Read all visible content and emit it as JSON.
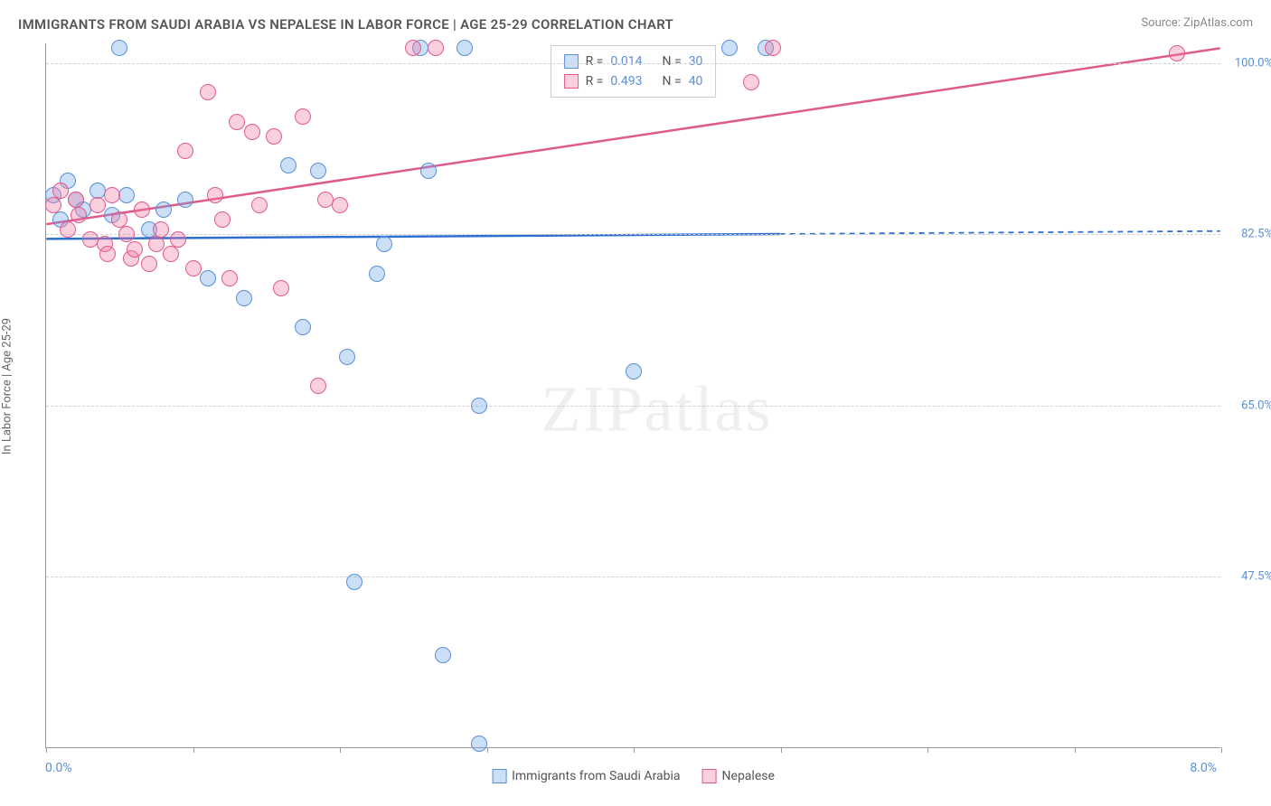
{
  "title": "IMMIGRANTS FROM SAUDI ARABIA VS NEPALESE IN LABOR FORCE | AGE 25-29 CORRELATION CHART",
  "source_label": "Source:",
  "source_value": "ZipAtlas.com",
  "y_axis_title": "In Labor Force | Age 25-29",
  "watermark": "ZIPatlas",
  "chart": {
    "type": "scatter",
    "background_color": "#ffffff",
    "grid_color": "#d0d0d0",
    "axis_color": "#999999",
    "tick_label_color": "#5b8fd6",
    "xlim": [
      0.0,
      8.0
    ],
    "ylim": [
      30.0,
      102.0
    ],
    "y_ticks": [
      100.0,
      82.5,
      65.0,
      47.5
    ],
    "y_tick_labels": [
      "100.0%",
      "82.5%",
      "65.0%",
      "47.5%"
    ],
    "x_ticks": [
      0.0,
      1.0,
      2.0,
      3.0,
      4.0,
      5.0,
      6.0,
      7.0,
      8.0
    ],
    "x_label_min": "0.0%",
    "x_label_max": "8.0%",
    "marker_radius": 9,
    "series": [
      {
        "key": "saudi",
        "label": "Immigrants from Saudi Arabia",
        "fill": "rgba(107,163,232,0.35)",
        "stroke": "#5b8fd6",
        "line_color": "#2f6fd0",
        "line_width": 2.5,
        "r": "0.014",
        "n": "30",
        "trend": {
          "x1": 0.0,
          "y1": 82.0,
          "x2": 5.0,
          "y2": 82.5,
          "extrap_x2": 8.0,
          "extrap_y2": 82.8
        },
        "points": [
          [
            0.05,
            86.5
          ],
          [
            0.1,
            84.0
          ],
          [
            0.15,
            88.0
          ],
          [
            0.2,
            86.0
          ],
          [
            0.25,
            85.0
          ],
          [
            0.35,
            87.0
          ],
          [
            0.45,
            84.5
          ],
          [
            0.5,
            101.5
          ],
          [
            0.55,
            86.5
          ],
          [
            0.7,
            83.0
          ],
          [
            0.8,
            85.0
          ],
          [
            0.95,
            86.0
          ],
          [
            1.1,
            78.0
          ],
          [
            1.35,
            76.0
          ],
          [
            1.65,
            89.5
          ],
          [
            1.75,
            73.0
          ],
          [
            1.85,
            89.0
          ],
          [
            2.05,
            70.0
          ],
          [
            2.1,
            47.0
          ],
          [
            2.25,
            78.5
          ],
          [
            2.3,
            81.5
          ],
          [
            2.55,
            101.5
          ],
          [
            2.6,
            89.0
          ],
          [
            2.7,
            39.5
          ],
          [
            2.85,
            101.5
          ],
          [
            2.95,
            65.0
          ],
          [
            2.95,
            30.5
          ],
          [
            4.0,
            68.5
          ],
          [
            4.65,
            101.5
          ],
          [
            4.9,
            101.5
          ]
        ]
      },
      {
        "key": "nepalese",
        "label": "Nepalese",
        "fill": "rgba(242,120,160,0.35)",
        "stroke": "#e05a8c",
        "line_color": "#e05a8c",
        "line_width": 2.5,
        "r": "0.493",
        "n": "40",
        "trend": {
          "x1": 0.0,
          "y1": 83.5,
          "x2": 8.0,
          "y2": 101.5
        },
        "points": [
          [
            0.05,
            85.5
          ],
          [
            0.1,
            87.0
          ],
          [
            0.15,
            83.0
          ],
          [
            0.2,
            86.0
          ],
          [
            0.22,
            84.5
          ],
          [
            0.3,
            82.0
          ],
          [
            0.35,
            85.5
          ],
          [
            0.4,
            81.5
          ],
          [
            0.42,
            80.5
          ],
          [
            0.45,
            86.5
          ],
          [
            0.5,
            84.0
          ],
          [
            0.55,
            82.5
          ],
          [
            0.58,
            80.0
          ],
          [
            0.6,
            81.0
          ],
          [
            0.65,
            85.0
          ],
          [
            0.7,
            79.5
          ],
          [
            0.75,
            81.5
          ],
          [
            0.78,
            83.0
          ],
          [
            0.85,
            80.5
          ],
          [
            0.9,
            82.0
          ],
          [
            0.95,
            91.0
          ],
          [
            1.0,
            79.0
          ],
          [
            1.1,
            97.0
          ],
          [
            1.15,
            86.5
          ],
          [
            1.2,
            84.0
          ],
          [
            1.25,
            78.0
          ],
          [
            1.3,
            94.0
          ],
          [
            1.4,
            93.0
          ],
          [
            1.45,
            85.5
          ],
          [
            1.55,
            92.5
          ],
          [
            1.6,
            77.0
          ],
          [
            1.75,
            94.5
          ],
          [
            1.85,
            67.0
          ],
          [
            1.9,
            86.0
          ],
          [
            2.0,
            85.5
          ],
          [
            2.5,
            101.5
          ],
          [
            2.65,
            101.5
          ],
          [
            4.8,
            98.0
          ],
          [
            4.95,
            101.5
          ],
          [
            7.7,
            101.0
          ]
        ]
      }
    ],
    "legend_top": {
      "r_label": "R =",
      "n_label": "N ="
    },
    "legend_bottom_items": [
      "saudi",
      "nepalese"
    ]
  }
}
